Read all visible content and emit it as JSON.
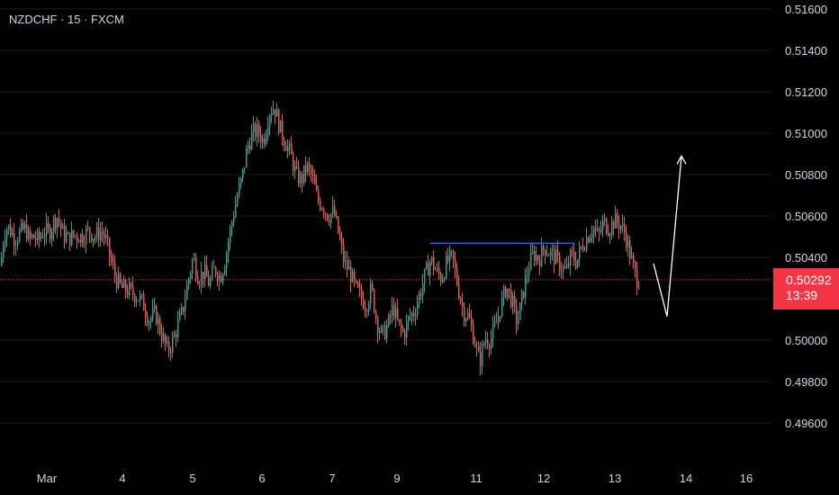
{
  "header": {
    "symbol_label": "NZDCHF · 15 · FXCM"
  },
  "price_tag": {
    "price": "0.50292",
    "countdown": "13:39"
  },
  "colors": {
    "background": "#000000",
    "up": "#26a69a",
    "down": "#ef5350",
    "grid": "#1a1a1a",
    "axis_text": "#d1d4dc",
    "current_price": "#f23645",
    "resistance_line": "#2962ff",
    "projection": "#ffffff"
  },
  "chart_data": {
    "type": "candlestick",
    "title": "",
    "xlabel": "",
    "ylabel": "",
    "ylim": [
      0.4945,
      0.5168
    ],
    "y_ticks": [
      "0.51600",
      "0.51400",
      "0.51200",
      "0.51000",
      "0.50800",
      "0.50600",
      "0.50400",
      "0.50200",
      "0.50000",
      "0.49800",
      "0.49600"
    ],
    "x_ticks": [
      "Mar",
      "4",
      "5",
      "6",
      "7",
      "9",
      "11",
      "12",
      "13",
      "14",
      "16"
    ],
    "current_price": 0.50292,
    "grid": false,
    "close_path": [
      [
        0,
        0.5036
      ],
      [
        4,
        0.5052
      ],
      [
        8,
        0.5055
      ],
      [
        16,
        0.5049
      ],
      [
        22,
        0.5052
      ],
      [
        28,
        0.5054
      ],
      [
        32,
        0.5048
      ],
      [
        36,
        0.505
      ],
      [
        42,
        0.5048
      ],
      [
        48,
        0.5053
      ],
      [
        54,
        0.5052
      ],
      [
        60,
        0.5058
      ],
      [
        64,
        0.506
      ],
      [
        68,
        0.5052
      ],
      [
        75,
        0.5049
      ],
      [
        82,
        0.5051
      ],
      [
        90,
        0.505
      ],
      [
        98,
        0.5053
      ],
      [
        105,
        0.505
      ],
      [
        112,
        0.5053
      ],
      [
        118,
        0.5047
      ],
      [
        122,
        0.5039
      ],
      [
        128,
        0.503
      ],
      [
        135,
        0.5025
      ],
      [
        142,
        0.5024
      ],
      [
        150,
        0.5022
      ],
      [
        158,
        0.5018
      ],
      [
        165,
        0.501
      ],
      [
        172,
        0.5013
      ],
      [
        178,
        0.5004
      ],
      [
        185,
        0.4995
      ],
      [
        190,
        0.4998
      ],
      [
        196,
        0.5006
      ],
      [
        202,
        0.5014
      ],
      [
        208,
        0.5028
      ],
      [
        214,
        0.504
      ],
      [
        220,
        0.503
      ],
      [
        226,
        0.5033
      ],
      [
        232,
        0.5027
      ],
      [
        238,
        0.5035
      ],
      [
        244,
        0.503
      ],
      [
        250,
        0.504
      ],
      [
        256,
        0.5055
      ],
      [
        262,
        0.5068
      ],
      [
        268,
        0.5078
      ],
      [
        274,
        0.5093
      ],
      [
        280,
        0.51
      ],
      [
        286,
        0.5101
      ],
      [
        292,
        0.5096
      ],
      [
        298,
        0.511
      ],
      [
        304,
        0.5113
      ],
      [
        310,
        0.5103
      ],
      [
        316,
        0.5096
      ],
      [
        322,
        0.509
      ],
      [
        328,
        0.508
      ],
      [
        334,
        0.5077
      ],
      [
        340,
        0.5084
      ],
      [
        346,
        0.5079
      ],
      [
        352,
        0.5068
      ],
      [
        358,
        0.5065
      ],
      [
        364,
        0.506
      ],
      [
        370,
        0.5062
      ],
      [
        376,
        0.505
      ],
      [
        382,
        0.5037
      ],
      [
        388,
        0.5033
      ],
      [
        394,
        0.5025
      ],
      [
        400,
        0.5021
      ],
      [
        406,
        0.5017
      ],
      [
        412,
        0.5025
      ],
      [
        418,
        0.5009
      ],
      [
        424,
        0.5002
      ],
      [
        430,
        0.5007
      ],
      [
        436,
        0.5016
      ],
      [
        442,
        0.5007
      ],
      [
        448,
        0.5003
      ],
      [
        454,
        0.5011
      ],
      [
        460,
        0.5014
      ],
      [
        466,
        0.5023
      ],
      [
        472,
        0.5032
      ],
      [
        478,
        0.5039
      ],
      [
        484,
        0.5033
      ],
      [
        490,
        0.503
      ],
      [
        496,
        0.5038
      ],
      [
        502,
        0.504
      ],
      [
        508,
        0.5026
      ],
      [
        514,
        0.5014
      ],
      [
        520,
        0.5011
      ],
      [
        526,
        0.5001
      ],
      [
        532,
        0.4989
      ],
      [
        538,
        0.5001
      ],
      [
        544,
        0.5
      ],
      [
        550,
        0.5007
      ],
      [
        556,
        0.5017
      ],
      [
        562,
        0.5026
      ],
      [
        568,
        0.5019
      ],
      [
        574,
        0.5008
      ],
      [
        580,
        0.5022
      ],
      [
        586,
        0.5035
      ],
      [
        592,
        0.5042
      ],
      [
        598,
        0.5039
      ],
      [
        604,
        0.5045
      ],
      [
        610,
        0.5042
      ],
      [
        616,
        0.504
      ],
      [
        622,
        0.5036
      ],
      [
        628,
        0.5033
      ],
      [
        634,
        0.5041
      ],
      [
        640,
        0.5038
      ],
      [
        646,
        0.5046
      ],
      [
        652,
        0.505
      ],
      [
        658,
        0.5055
      ],
      [
        664,
        0.505
      ],
      [
        670,
        0.5057
      ],
      [
        676,
        0.5054
      ],
      [
        682,
        0.5058
      ],
      [
        688,
        0.5056
      ],
      [
        694,
        0.5051
      ],
      [
        700,
        0.504
      ],
      [
        706,
        0.503
      ],
      [
        710,
        0.5029
      ]
    ],
    "resistance_line": {
      "price": 0.50468,
      "x_start": 478,
      "x_end": 638
    },
    "projection": [
      {
        "x": 726,
        "price": 0.5037
      },
      {
        "x": 741,
        "price": 0.50115
      },
      {
        "x": 757,
        "price": 0.5089
      }
    ]
  }
}
